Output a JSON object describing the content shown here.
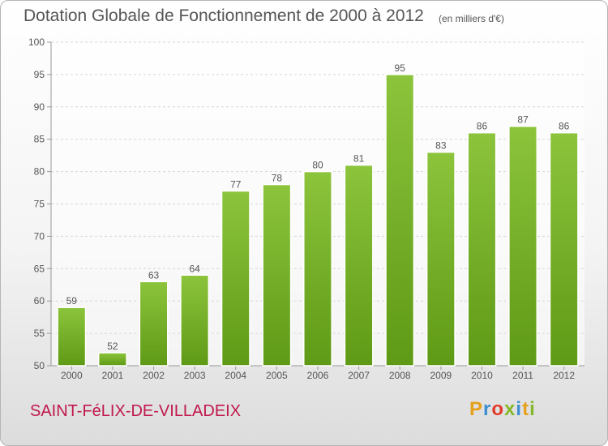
{
  "header": {
    "title": "Dotation Globale de Fonctionnement de 2000 à 2012",
    "subtitle": "(en milliers d'€)"
  },
  "footer": {
    "commune": "SAINT-FéLIX-DE-VILLADEIX",
    "brand": "Proxiti",
    "brand_colors": [
      "#e5a01c",
      "#3d8fd1",
      "#e23b2a",
      "#84b82a",
      "#3d8fd1",
      "#e5a01c",
      "#84b82a"
    ]
  },
  "chart_data": {
    "type": "bar",
    "title": "Dotation Globale de Fonctionnement de 2000 à 2012",
    "subtitle": "(en milliers d'€)",
    "categories": [
      "2000",
      "2001",
      "2002",
      "2003",
      "2004",
      "2005",
      "2006",
      "2007",
      "2008",
      "2009",
      "2010",
      "2011",
      "2012"
    ],
    "values": [
      59,
      52,
      63,
      64,
      77,
      78,
      80,
      81,
      95,
      83,
      86,
      87,
      86
    ],
    "xlabel": "",
    "ylabel": "",
    "ylim": [
      50,
      100
    ],
    "yticks": [
      50,
      55,
      60,
      65,
      70,
      75,
      80,
      85,
      90,
      95,
      100
    ],
    "grid": true,
    "data_labels": true,
    "bar_color": "#8cc43c",
    "bar_color_dark": "#5f9a16"
  }
}
